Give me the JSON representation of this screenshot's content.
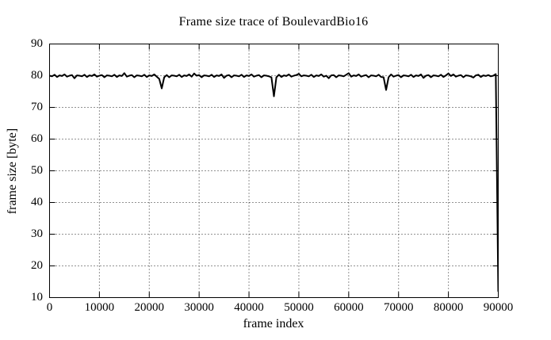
{
  "chart_data": {
    "type": "line",
    "title": "Frame size trace of BoulevardBio16",
    "xlabel": "frame index",
    "ylabel": "frame size [byte]",
    "xlim": [
      0,
      90000
    ],
    "ylim": [
      10,
      90
    ],
    "xticks": [
      0,
      10000,
      20000,
      30000,
      40000,
      50000,
      60000,
      70000,
      80000,
      90000
    ],
    "yticks": [
      10,
      20,
      30,
      40,
      50,
      60,
      70,
      80,
      90
    ],
    "grid": true,
    "legend": "none",
    "line_color": "#000000",
    "background_color": "#ffffff",
    "series": [
      {
        "name": "frame size trace",
        "x_start": 0,
        "x_step": 500,
        "values": [
          80,
          79.8,
          80.3,
          79.6,
          80.1,
          79.9,
          80.4,
          79.7,
          80.0,
          80.2,
          79.2,
          80.1,
          80,
          79.8,
          80.3,
          79.6,
          80.1,
          79.9,
          80.4,
          79.7,
          80.0,
          80.2,
          79.5,
          80.1,
          80,
          79.8,
          80.3,
          79.6,
          80.1,
          79.9,
          80.8,
          79.7,
          80.0,
          80.2,
          79.5,
          80.1,
          80,
          79.8,
          80.3,
          79.6,
          80.1,
          79.9,
          80.4,
          79.7,
          79.0,
          76.0,
          79.5,
          80.2,
          79.5,
          80.1,
          80,
          79.8,
          80.3,
          79.6,
          80.1,
          79.9,
          80.4,
          79.7,
          80.7,
          80.0,
          80.2,
          79.5,
          80.1,
          80,
          79.8,
          80.3,
          79.6,
          80.1,
          79.9,
          80.4,
          79.3,
          80.0,
          80.2,
          79.5,
          80.1,
          80,
          79.8,
          80.3,
          79.6,
          80.1,
          79.9,
          80.4,
          79.7,
          80.0,
          80.2,
          79.5,
          80.1,
          80.0,
          79.8,
          79.5,
          73.5,
          79.5,
          80.3,
          79.6,
          80.1,
          79.9,
          80.4,
          79.7,
          80.0,
          80.2,
          80.6,
          79.8,
          80.1,
          80,
          79.8,
          80.3,
          79.6,
          80.1,
          79.9,
          80.4,
          79.7,
          80.0,
          79.2,
          80.1,
          80.2,
          79.5,
          80.1,
          80,
          79.8,
          80.3,
          80.8,
          79.7,
          80.1,
          79.9,
          80.4,
          79.7,
          80.0,
          80.2,
          79.5,
          80.1,
          80,
          79.8,
          80.3,
          79.6,
          79.5,
          75.5,
          79.5,
          80.4,
          79.7,
          80.0,
          80.2,
          79.5,
          80.1,
          80,
          79.8,
          80.3,
          79.6,
          80.1,
          79.9,
          80.4,
          79.3,
          80.0,
          80.2,
          79.5,
          80.1,
          80,
          79.8,
          80.3,
          79.6,
          80.1,
          80.7,
          79.9,
          80.4,
          79.7,
          80.0,
          80.2,
          79.5,
          80.1,
          80,
          79.8,
          79.4,
          80.1,
          80.3,
          79.6,
          80.1,
          79.9,
          80.2,
          79.8,
          80.0,
          80.5,
          12.0
        ]
      }
    ],
    "notable_features": [
      {
        "x": 22500,
        "y": 76.0,
        "note": "narrow downward spike"
      },
      {
        "x": 45000,
        "y": 73.5,
        "note": "deepest mid-trace downward spike"
      },
      {
        "x": 67500,
        "y": 75.5,
        "note": "narrow downward spike"
      },
      {
        "x": 90000,
        "y": 12.0,
        "note": "trace plummets to ~12 bytes at end"
      }
    ]
  }
}
